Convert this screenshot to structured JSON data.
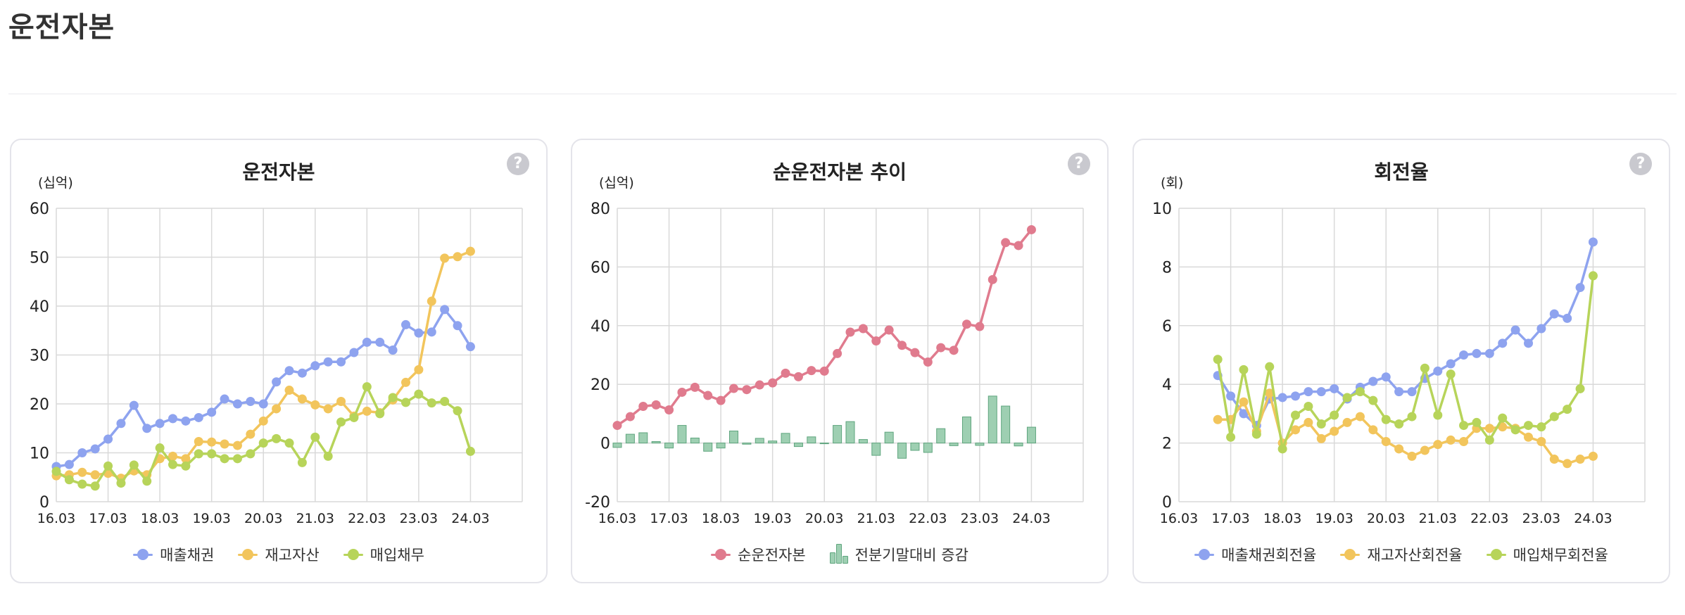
{
  "page_title": "운전자본",
  "help_symbol": "?",
  "colors": {
    "blue": "#8ea3ef",
    "yellow": "#f2c55c",
    "green": "#b7d45a",
    "pink": "#e07b8e",
    "bar_fill": "#9ecfb2",
    "bar_stroke": "#5fa57e",
    "grid": "#d9d9d9"
  },
  "charts": [
    {
      "title": "운전자본",
      "unit": "(십억)",
      "legend": [
        {
          "label": "매출채권",
          "color": "blue",
          "kind": "line"
        },
        {
          "label": "재고자산",
          "color": "yellow",
          "kind": "line"
        },
        {
          "label": "매입채무",
          "color": "green",
          "kind": "line"
        }
      ]
    },
    {
      "title": "순운전자본 추이",
      "unit": "(십억)",
      "legend": [
        {
          "label": "순운전자본",
          "color": "pink",
          "kind": "line"
        },
        {
          "label": "전분기말대비 증감",
          "color": "bar_fill",
          "kind": "bar"
        }
      ]
    },
    {
      "title": "회전율",
      "unit": "(회)",
      "legend": [
        {
          "label": "매출채권회전율",
          "color": "blue",
          "kind": "line"
        },
        {
          "label": "재고자산회전율",
          "color": "yellow",
          "kind": "line"
        },
        {
          "label": "매입채무회전율",
          "color": "green",
          "kind": "line"
        }
      ]
    }
  ],
  "chart_data": [
    {
      "type": "line",
      "title": "운전자본",
      "ylabel": "(십억)",
      "ylim": [
        0,
        60
      ],
      "yticks": [
        0,
        10,
        20,
        30,
        40,
        50,
        60
      ],
      "x_start": 2016.0,
      "x_end": 2025.0,
      "xticks": [
        "16.03",
        "17.03",
        "18.03",
        "19.03",
        "20.03",
        "21.03",
        "22.03",
        "23.03",
        "24.03"
      ],
      "grid": true,
      "legend_position": "bottom",
      "series": [
        {
          "name": "매출채권",
          "color": "blue",
          "x": [
            2016.0,
            2016.25,
            2016.5,
            2016.75,
            2017.0,
            2017.25,
            2017.5,
            2017.75,
            2018.0,
            2018.25,
            2018.5,
            2018.75,
            2019.0,
            2019.25,
            2019.5,
            2019.75,
            2020.0,
            2020.25,
            2020.5,
            2020.75,
            2021.0,
            2021.25,
            2021.5,
            2021.75,
            2022.0,
            2022.25,
            2022.5,
            2022.75,
            2023.0,
            2023.25,
            2023.5,
            2023.75,
            2024.0
          ],
          "values": [
            7.2,
            7.6,
            10,
            10.8,
            12.8,
            16,
            19.7,
            15,
            16,
            17,
            16.5,
            17.2,
            18.3,
            21,
            20,
            20.5,
            20,
            24.5,
            26.8,
            26.3,
            27.8,
            28.6,
            28.6,
            30.5,
            32.6,
            32.6,
            31,
            36.2,
            34.5,
            34.7,
            39.3,
            36,
            31.7
          ]
        },
        {
          "name": "재고자산",
          "color": "yellow",
          "x": [
            2016.0,
            2016.25,
            2016.5,
            2016.75,
            2017.0,
            2017.25,
            2017.5,
            2017.75,
            2018.0,
            2018.25,
            2018.5,
            2018.75,
            2019.0,
            2019.25,
            2019.5,
            2019.75,
            2020.0,
            2020.25,
            2020.5,
            2020.75,
            2021.0,
            2021.25,
            2021.5,
            2021.75,
            2022.0,
            2022.25,
            2022.5,
            2022.75,
            2023.0,
            2023.25,
            2023.5,
            2023.75,
            2024.0
          ],
          "values": [
            5.3,
            5.5,
            6,
            5.5,
            5.8,
            4.8,
            6.3,
            5.5,
            8.8,
            9.3,
            8.8,
            12.3,
            12.2,
            11.8,
            11.5,
            13.8,
            16.5,
            19,
            22.8,
            21,
            19.8,
            19,
            20.5,
            17.5,
            18.5,
            18.2,
            20.8,
            24.4,
            27,
            41,
            49.8,
            50.1,
            51.2
          ]
        },
        {
          "name": "매입채무",
          "color": "green",
          "x": [
            2016.0,
            2016.25,
            2016.5,
            2016.75,
            2017.0,
            2017.25,
            2017.5,
            2017.75,
            2018.0,
            2018.25,
            2018.5,
            2018.75,
            2019.0,
            2019.25,
            2019.5,
            2019.75,
            2020.0,
            2020.25,
            2020.5,
            2020.75,
            2021.0,
            2021.25,
            2021.5,
            2021.75,
            2022.0,
            2022.25,
            2022.5,
            2022.75,
            2023.0,
            2023.25,
            2023.5,
            2023.75,
            2024.0
          ],
          "values": [
            6.2,
            4.5,
            3.6,
            3.2,
            7.3,
            3.8,
            7.5,
            4.2,
            11,
            7.6,
            7.3,
            9.8,
            9.8,
            8.8,
            8.8,
            9.8,
            12,
            12.9,
            12,
            8,
            13.2,
            9.3,
            16.3,
            17.2,
            23.5,
            18,
            21.3,
            20.3,
            22,
            20.2,
            20.5,
            18.6,
            10.3
          ]
        }
      ]
    },
    {
      "type": "line+bar",
      "title": "순운전자본 추이",
      "ylabel": "(십억)",
      "ylim": [
        -20,
        80
      ],
      "yticks": [
        -20,
        0,
        20,
        40,
        60,
        80
      ],
      "x_start": 2016.0,
      "x_end": 2025.0,
      "xticks": [
        "16.03",
        "17.03",
        "18.03",
        "19.03",
        "20.03",
        "21.03",
        "22.03",
        "23.03",
        "24.03"
      ],
      "grid": true,
      "legend_position": "bottom",
      "series": [
        {
          "name": "순운전자본",
          "color": "pink",
          "type": "line",
          "x": [
            2016.0,
            2016.25,
            2016.5,
            2016.75,
            2017.0,
            2017.25,
            2017.5,
            2017.75,
            2018.0,
            2018.25,
            2018.5,
            2018.75,
            2019.0,
            2019.25,
            2019.5,
            2019.75,
            2020.0,
            2020.25,
            2020.5,
            2020.75,
            2021.0,
            2021.25,
            2021.5,
            2021.75,
            2022.0,
            2022.25,
            2022.5,
            2022.75,
            2023.0,
            2023.25,
            2023.5,
            2023.75,
            2024.0
          ],
          "values": [
            6,
            9,
            12.5,
            13,
            11.3,
            17.3,
            19,
            16.2,
            14.5,
            18.6,
            18.2,
            19.8,
            20.5,
            23.8,
            22.6,
            24.7,
            24.5,
            30.5,
            37.8,
            39,
            34.8,
            38.5,
            33.3,
            30.8,
            27.6,
            32.5,
            31.6,
            40.5,
            39.7,
            55.7,
            68.3,
            67.3,
            72.7
          ]
        },
        {
          "name": "전분기말대비 증감",
          "color": "bar_fill",
          "type": "bar",
          "x": [
            2016.0,
            2016.25,
            2016.5,
            2016.75,
            2017.0,
            2017.25,
            2017.5,
            2017.75,
            2018.0,
            2018.25,
            2018.5,
            2018.75,
            2019.0,
            2019.25,
            2019.5,
            2019.75,
            2020.0,
            2020.25,
            2020.5,
            2020.75,
            2021.0,
            2021.25,
            2021.5,
            2021.75,
            2022.0,
            2022.25,
            2022.5,
            2022.75,
            2023.0,
            2023.25,
            2023.5,
            2023.75,
            2024.0
          ],
          "values": [
            -1.5,
            3,
            3.5,
            0.5,
            -1.7,
            6,
            1.7,
            -2.8,
            -1.7,
            4.1,
            -0.4,
            1.6,
            0.7,
            3.3,
            -1.2,
            2.1,
            -0.2,
            6,
            7.3,
            1.2,
            -4.2,
            3.7,
            -5.2,
            -2.5,
            -3.2,
            4.9,
            -0.9,
            8.9,
            -0.8,
            16,
            12.6,
            -1,
            5.4
          ]
        }
      ]
    },
    {
      "type": "line",
      "title": "회전율",
      "ylabel": "(회)",
      "ylim": [
        0,
        10
      ],
      "yticks": [
        0,
        2,
        4,
        6,
        8,
        10
      ],
      "x_start": 2016.0,
      "x_end": 2025.0,
      "xticks": [
        "16.03",
        "17.03",
        "18.03",
        "19.03",
        "20.03",
        "21.03",
        "22.03",
        "23.03",
        "24.03"
      ],
      "grid": true,
      "legend_position": "bottom",
      "series": [
        {
          "name": "매출채권회전율",
          "color": "blue",
          "x": [
            2016.75,
            2017.0,
            2017.25,
            2017.5,
            2017.75,
            2018.0,
            2018.25,
            2018.5,
            2018.75,
            2019.0,
            2019.25,
            2019.5,
            2019.75,
            2020.0,
            2020.25,
            2020.5,
            2020.75,
            2021.0,
            2021.25,
            2021.5,
            2021.75,
            2022.0,
            2022.25,
            2022.5,
            2022.75,
            2023.0,
            2023.25,
            2023.5,
            2023.75,
            2024.0
          ],
          "values": [
            4.3,
            3.6,
            3,
            2.6,
            3.5,
            3.55,
            3.6,
            3.75,
            3.75,
            3.85,
            3.5,
            3.9,
            4.1,
            4.25,
            3.75,
            3.75,
            4.2,
            4.45,
            4.7,
            5,
            5.05,
            5.05,
            5.4,
            5.85,
            5.4,
            5.9,
            6.4,
            6.25,
            7.3,
            8.85
          ]
        },
        {
          "name": "재고자산회전율",
          "color": "yellow",
          "x": [
            2016.75,
            2017.0,
            2017.25,
            2017.5,
            2017.75,
            2018.0,
            2018.25,
            2018.5,
            2018.75,
            2019.0,
            2019.25,
            2019.5,
            2019.75,
            2020.0,
            2020.25,
            2020.5,
            2020.75,
            2021.0,
            2021.25,
            2021.5,
            2021.75,
            2022.0,
            2022.25,
            2022.5,
            2022.75,
            2023.0,
            2023.25,
            2023.5,
            2023.75,
            2024.0
          ],
          "values": [
            2.8,
            2.8,
            3.4,
            2.4,
            3.7,
            2,
            2.45,
            2.7,
            2.15,
            2.4,
            2.7,
            2.9,
            2.45,
            2.05,
            1.8,
            1.55,
            1.75,
            1.95,
            2.1,
            2.05,
            2.5,
            2.5,
            2.55,
            2.5,
            2.2,
            2.05,
            1.45,
            1.3,
            1.45,
            1.55
          ]
        },
        {
          "name": "매입채무회전율",
          "color": "green",
          "x": [
            2016.75,
            2017.0,
            2017.25,
            2017.5,
            2017.75,
            2018.0,
            2018.25,
            2018.5,
            2018.75,
            2019.0,
            2019.25,
            2019.5,
            2019.75,
            2020.0,
            2020.25,
            2020.5,
            2020.75,
            2021.0,
            2021.25,
            2021.5,
            2021.75,
            2022.0,
            2022.25,
            2022.5,
            2022.75,
            2023.0,
            2023.25,
            2023.5,
            2023.75,
            2024.0
          ],
          "values": [
            4.85,
            2.2,
            4.5,
            2.3,
            4.6,
            1.8,
            2.95,
            3.25,
            2.65,
            2.95,
            3.55,
            3.75,
            3.45,
            2.8,
            2.65,
            2.9,
            4.55,
            2.95,
            4.35,
            2.6,
            2.7,
            2.1,
            2.85,
            2.45,
            2.6,
            2.55,
            2.9,
            3.15,
            3.85,
            7.7
          ]
        }
      ]
    }
  ]
}
